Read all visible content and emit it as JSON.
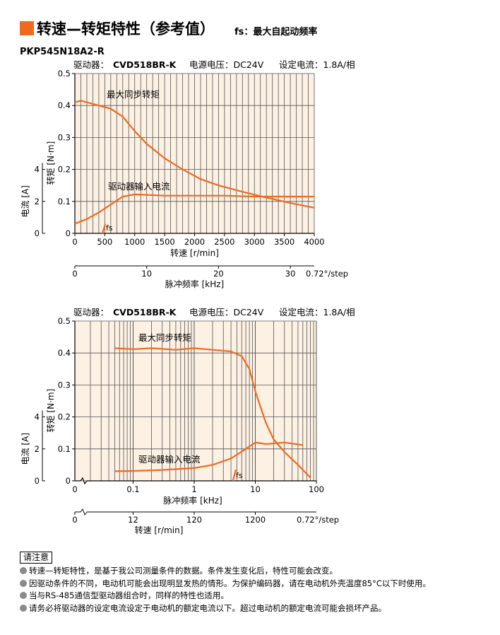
{
  "header": {
    "title": "转速—转矩特性（参考值）",
    "fs_note": "fs：最大自起动频率",
    "model": "PKP545N18A2-R"
  },
  "colors": {
    "accent": "#ef6a1f",
    "plot_bg": "#fdf1e4",
    "curve": "#ef6a1f"
  },
  "chart_data": [
    {
      "type": "line",
      "info": {
        "driver_label": "驱动器：",
        "driver": "CVD518BR-K",
        "voltage": "电源电压：DC24V",
        "current": "设定电流：1.8A/相"
      },
      "title": "",
      "xlabel": "转速 [r/min]",
      "ylabel": "转矩 [N·m]",
      "ylabel2": "电流 [A]",
      "x2label": "脉冲频率 [kHz]",
      "x2_unit": "0.72°/step",
      "xlim": [
        0,
        4000
      ],
      "ylim": [
        0,
        0.5
      ],
      "xticks": [
        "0",
        "500",
        "1000",
        "1500",
        "2000",
        "2500",
        "3000",
        "3500",
        "4000"
      ],
      "yticks": [
        "0",
        "0.1",
        "0.2",
        "0.3",
        "0.4",
        "0.5"
      ],
      "y2ticks": [
        "0",
        "2",
        "4"
      ],
      "x2ticks": [
        "0",
        "10",
        "20",
        "30"
      ],
      "grid": true,
      "series": [
        {
          "name": "最大同步转矩",
          "x": [
            0,
            100,
            300,
            600,
            800,
            1000,
            1200,
            1500,
            1800,
            2100,
            2400,
            2800,
            3200,
            3600,
            4000
          ],
          "y": [
            0.41,
            0.415,
            0.405,
            0.39,
            0.365,
            0.32,
            0.28,
            0.235,
            0.2,
            0.17,
            0.15,
            0.13,
            0.112,
            0.095,
            0.08
          ]
        },
        {
          "name": "驱动器输入电流",
          "x": [
            0,
            200,
            400,
            600,
            800,
            1000,
            1500,
            2000,
            2500,
            3000,
            3500,
            4000
          ],
          "y": [
            0.03,
            0.045,
            0.065,
            0.09,
            0.115,
            0.122,
            0.118,
            0.118,
            0.118,
            0.115,
            0.115,
            0.115
          ]
        },
        {
          "name": "fs",
          "x": [
            460,
            510
          ],
          "y": [
            0.0,
            0.03
          ]
        }
      ]
    },
    {
      "type": "line",
      "info": {
        "driver_label": "驱动器：",
        "driver": "CVD518BR-K",
        "voltage": "电源电压：DC24V",
        "current": "设定电流：1.8A/相"
      },
      "title": "",
      "xlabel": "脉冲频率 [kHz]",
      "ylabel": "转矩 [N·m]",
      "ylabel2": "电流 [A]",
      "x2label": "转速 [r/min]",
      "x2_unit": "0.72°/step",
      "x_scale": "log",
      "xlim": [
        0.02,
        100
      ],
      "ylim": [
        0,
        0.5
      ],
      "xticks": [
        "0.1",
        "1",
        "10",
        "100"
      ],
      "x_origin_label": "0",
      "yticks": [
        "0",
        "0.1",
        "0.2",
        "0.3",
        "0.4",
        "0.5"
      ],
      "y2ticks": [
        "0",
        "2",
        "4"
      ],
      "x2ticks": [
        "0",
        "12",
        "120",
        "1200"
      ],
      "grid": true,
      "series": [
        {
          "name": "最大同步转矩",
          "x": [
            0.05,
            0.1,
            0.2,
            0.5,
            1,
            2,
            4,
            6,
            8,
            10,
            15,
            20,
            30,
            50,
            80
          ],
          "y": [
            0.415,
            0.412,
            0.415,
            0.41,
            0.415,
            0.41,
            0.405,
            0.39,
            0.35,
            0.28,
            0.18,
            0.13,
            0.09,
            0.05,
            0.01
          ]
        },
        {
          "name": "驱动器输入电流",
          "x": [
            0.05,
            0.1,
            0.3,
            1,
            2,
            4,
            7,
            10,
            15,
            30,
            60
          ],
          "y": [
            0.03,
            0.031,
            0.034,
            0.04,
            0.05,
            0.07,
            0.1,
            0.12,
            0.115,
            0.12,
            0.112
          ]
        },
        {
          "name": "fs",
          "x": [
            4.3,
            4.8
          ],
          "y": [
            0.0,
            0.035
          ]
        }
      ]
    }
  ],
  "notes": {
    "heading": "请注意",
    "items": [
      "转速—转矩特性，是基于我公司测量条件的数据。条件发生变化后，特性可能会改变。",
      "因驱动条件的不同，电动机可能会出现明显发热的情形。为保护编码器，请在电动机外壳温度85°C以下时使用。",
      "当与RS-485通信型驱动器组合时，同样的特性也适用。",
      "请务必将驱动器的设定电流设定于电动机的额定电流以下。超过电动机的额定电流可能会损坏产品。"
    ]
  }
}
